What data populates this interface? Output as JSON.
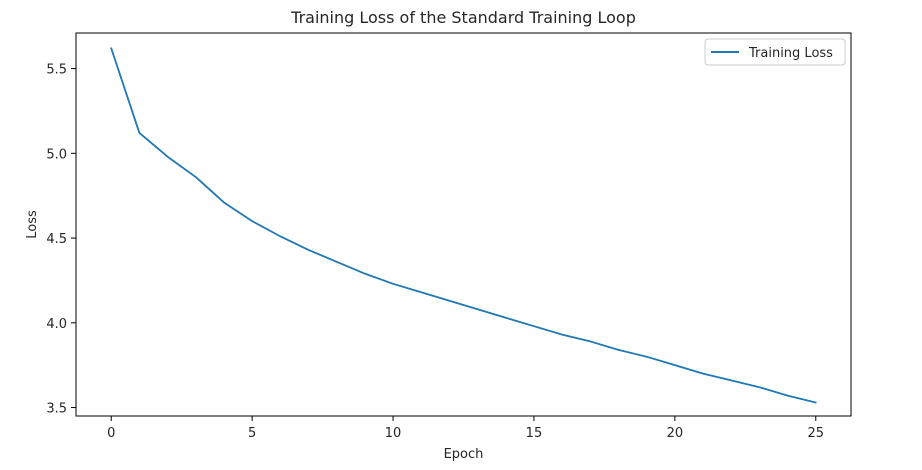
{
  "chart_data": {
    "type": "line",
    "title": "Training Loss of the Standard Training Loop",
    "xlabel": "Epoch",
    "ylabel": "Loss",
    "xlim": [
      -1.25,
      26.25
    ],
    "ylim": [
      3.45,
      5.71
    ],
    "xticks": [
      0,
      5,
      10,
      15,
      20,
      25
    ],
    "xtick_labels": [
      "0",
      "5",
      "10",
      "15",
      "20",
      "25"
    ],
    "yticks": [
      3.5,
      4.0,
      4.5,
      5.0,
      5.5
    ],
    "ytick_labels": [
      "3.5",
      "4.0",
      "4.5",
      "5.0",
      "5.5"
    ],
    "grid": false,
    "legend_position": "top-right",
    "series": [
      {
        "name": "Training Loss",
        "color": "#1f77b4",
        "x": [
          0,
          1,
          2,
          3,
          4,
          5,
          6,
          7,
          8,
          9,
          10,
          11,
          12,
          13,
          14,
          15,
          16,
          17,
          18,
          19,
          20,
          21,
          22,
          23,
          24,
          25
        ],
        "y": [
          5.62,
          5.12,
          4.98,
          4.86,
          4.71,
          4.6,
          4.51,
          4.43,
          4.36,
          4.29,
          4.23,
          4.18,
          4.13,
          4.08,
          4.03,
          3.98,
          3.93,
          3.89,
          3.84,
          3.8,
          3.75,
          3.7,
          3.66,
          3.62,
          3.57,
          3.53
        ]
      }
    ]
  }
}
